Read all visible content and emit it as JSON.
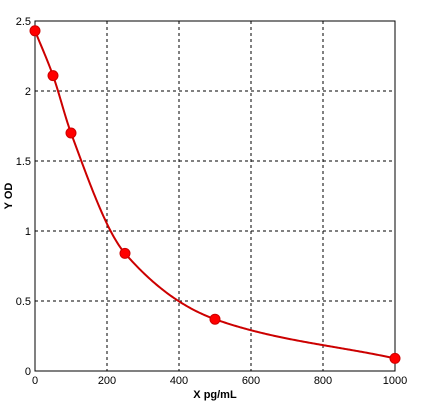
{
  "chart_data": {
    "type": "line",
    "xlabel": "X pg/mL",
    "ylabel": "Y OD",
    "xlim": [
      0,
      1000
    ],
    "ylim": [
      0,
      2.5
    ],
    "x_ticks": [
      0,
      200,
      400,
      600,
      800,
      1000
    ],
    "y_ticks": [
      0,
      0.5,
      1,
      1.5,
      2,
      2.5
    ],
    "x_tick_labels": [
      "0",
      "200",
      "400",
      "600",
      "800",
      "1000"
    ],
    "y_tick_labels": [
      "0",
      "0.5",
      "1",
      "1.5",
      "2",
      "2.5"
    ],
    "grid": true,
    "series": [
      {
        "points": [
          {
            "x": 0,
            "y": 2.43
          },
          {
            "x": 50,
            "y": 2.11
          },
          {
            "x": 100,
            "y": 1.7
          },
          {
            "x": 250,
            "y": 0.84
          },
          {
            "x": 500,
            "y": 0.37
          },
          {
            "x": 1000,
            "y": 0.09
          }
        ]
      }
    ],
    "colors": {
      "curve": "#cc0000",
      "marker": "#ff0000",
      "grid": "#000000",
      "axis": "#000000",
      "background": "#ffffff"
    }
  }
}
